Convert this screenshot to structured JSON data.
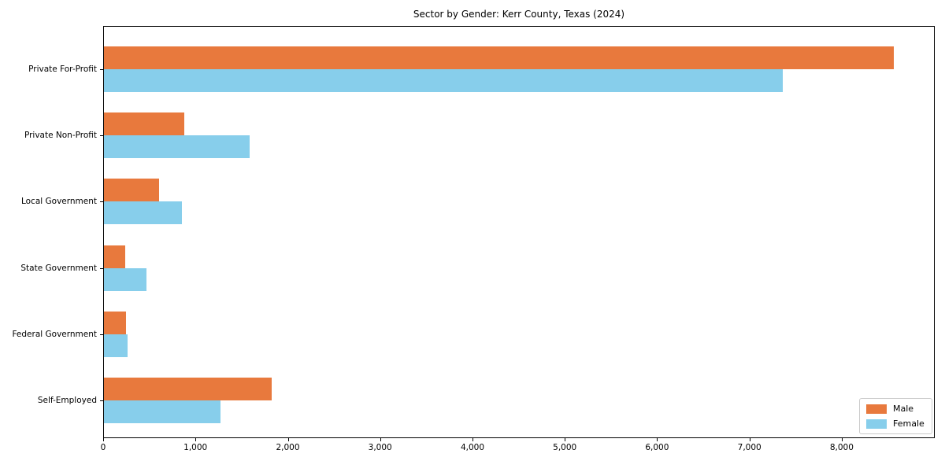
{
  "chart_data": {
    "type": "bar",
    "orientation": "horizontal",
    "title": "Sector by Gender: Kerr County, Texas (2024)",
    "xlabel": "",
    "ylabel": "",
    "categories": [
      "Private For-Profit",
      "Private Non-Profit",
      "Local Government",
      "State Government",
      "Federal Government",
      "Self-Employed"
    ],
    "series": [
      {
        "name": "Male",
        "color": "#e8793d",
        "values": [
          8555,
          870,
          595,
          230,
          235,
          1815
        ]
      },
      {
        "name": "Female",
        "color": "#87ceeb",
        "values": [
          7350,
          1575,
          845,
          460,
          255,
          1260
        ]
      }
    ],
    "xlim": [
      0,
      8990
    ],
    "xticks": [
      0,
      1000,
      2000,
      3000,
      4000,
      5000,
      6000,
      7000,
      8000
    ],
    "xtick_labels": [
      "0",
      "1,000",
      "2,000",
      "3,000",
      "4,000",
      "5,000",
      "6,000",
      "7,000",
      "8,000"
    ],
    "grid": false,
    "legend": {
      "position": "lower-right",
      "entries": [
        "Male",
        "Female"
      ]
    },
    "colors": {
      "male": "#e8793d",
      "female": "#87ceeb",
      "axis": "#000000",
      "background": "#ffffff",
      "legend_border": "#cccccc"
    }
  }
}
